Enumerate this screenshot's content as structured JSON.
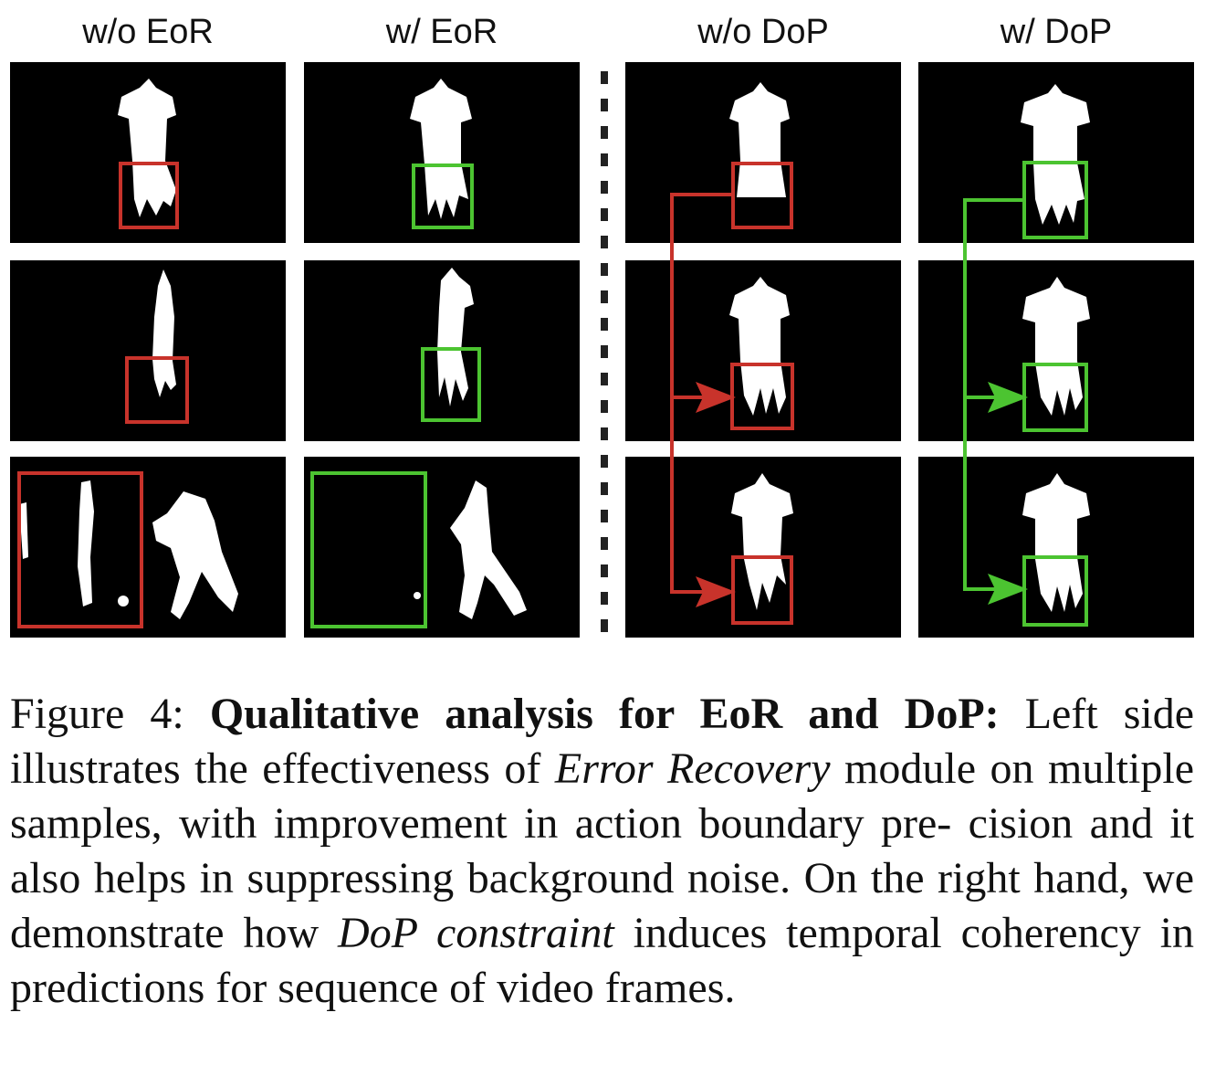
{
  "figure": {
    "column_headers": [
      "w/o EoR",
      "w/ EoR",
      "w/o DoP",
      "w/ DoP"
    ],
    "box_colors": {
      "bad": "#c8332b",
      "good": "#4cc431"
    },
    "panel_color": "#000000",
    "silhouette_color": "#ffffff"
  },
  "caption": {
    "label": "Figure 4:",
    "title": "Qualitative analysis for EoR and DoP:",
    "text_1": "Left side illustrates the effectiveness of",
    "em_1": "Error Recovery",
    "text_2": "module on multiple samples, with improvement in action boundary pre- cision and it also helps in suppressing background noise. On the right hand, we demonstrate how",
    "em_2": "DoP constraint",
    "text_3": "induces temporal coherency in predictions for sequence of video frames."
  }
}
